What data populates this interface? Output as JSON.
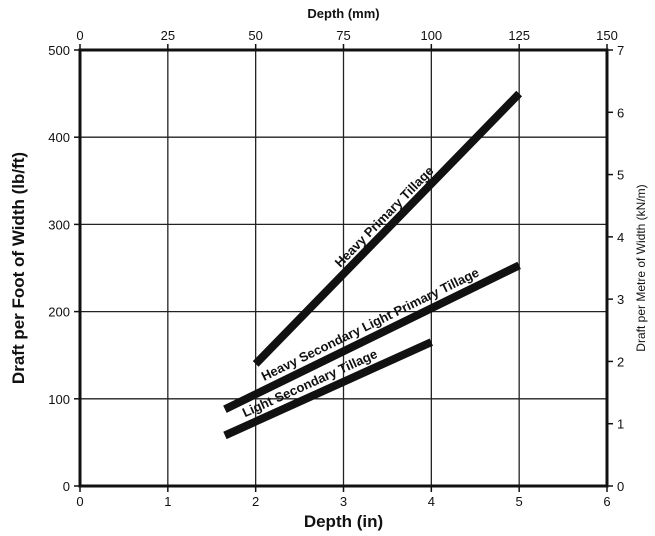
{
  "chart_data": {
    "type": "line",
    "title": "",
    "xlabel": "Depth (in)",
    "ylabel": "Draft per Foot of Width (lb/ft)",
    "x2label": "Depth (mm)",
    "y2label": "Draft per Metre of Width (kN/m)",
    "xlim": [
      0,
      6
    ],
    "ylim": [
      0,
      500
    ],
    "x2lim": [
      0,
      150
    ],
    "y2lim": [
      0,
      7
    ],
    "xticks": [
      "0",
      "1",
      "2",
      "3",
      "4",
      "5",
      "6"
    ],
    "yticks": [
      "0",
      "100",
      "200",
      "300",
      "400",
      "500"
    ],
    "x2ticks": [
      "0",
      "25",
      "50",
      "75",
      "100",
      "125",
      "150"
    ],
    "y2ticks": [
      "0",
      "1",
      "2",
      "3",
      "4",
      "5",
      "6",
      "7"
    ],
    "grid": true,
    "series": [
      {
        "name": "Heavy Primary Tillage",
        "x": [
          2.0,
          5.0
        ],
        "y": [
          140,
          450
        ],
        "label_at": 0.5
      },
      {
        "name": "Heavy Secondary Light Primary Tillage",
        "x": [
          1.65,
          5.0
        ],
        "y": [
          88,
          253
        ],
        "label_at": 0.5
      },
      {
        "name": "Light Secondary Tillage",
        "x": [
          1.65,
          4.0
        ],
        "y": [
          58,
          165
        ],
        "label_at": 0.42
      }
    ]
  }
}
